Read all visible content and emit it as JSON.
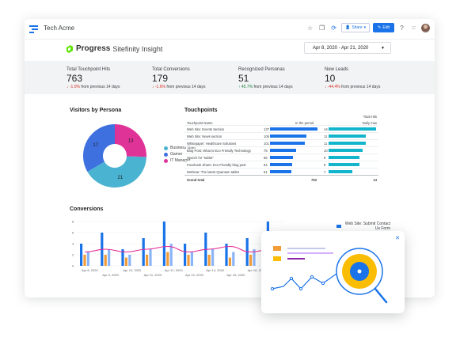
{
  "app": {
    "title": "Tech Acme"
  },
  "toolbar": {
    "share_label": "Share",
    "edit_label": "Edit",
    "icons": [
      "star-icon",
      "copy-icon",
      "refresh-icon",
      "help-icon",
      "apps-icon"
    ]
  },
  "brand": {
    "name": "Progress",
    "product": "Sitefinity Insight"
  },
  "date_range": {
    "value": "Apr 8, 2020 - Apr 21, 2020"
  },
  "kpis": [
    {
      "label": "Total Touchpoint Hits",
      "value": "763",
      "change": "↓ -1.0%",
      "suffix": "from previous 14 days",
      "direction": "down"
    },
    {
      "label": "Total Conversions",
      "value": "179",
      "change": "↓ -1.6%",
      "suffix": "from previous 14 days",
      "direction": "down"
    },
    {
      "label": "Recognized Personas",
      "value": "51",
      "change": "↑ 45.7%",
      "suffix": "from previous 14 days",
      "direction": "up"
    },
    {
      "label": "New Leads",
      "value": "10",
      "change": "↓ -44.4%",
      "suffix": "from previous 14 days",
      "direction": "down"
    }
  ],
  "personas": {
    "title": "Visitors by Persona",
    "legend": [
      "Business User",
      "Gamer",
      "IT Manager"
    ],
    "colors": [
      "#4ab3d1",
      "#3f70e0",
      "#e03397"
    ],
    "chart_data": {
      "type": "pie",
      "categories": [
        "Business User",
        "Gamer",
        "IT Manager"
      ],
      "values": [
        21,
        17,
        13
      ],
      "title": "Visitors by Persona"
    }
  },
  "touchpoints": {
    "title": "Touchpoints",
    "col_header_right": "Total Hits",
    "col_name": "Touchpoint Name",
    "col_period": "In the period",
    "col_daily": "Daily max",
    "rows": [
      {
        "name": "Web Site: Events Section",
        "period": "137",
        "daily": "14"
      },
      {
        "name": "Web Site: News section",
        "period": "106",
        "daily": "11"
      },
      {
        "name": "Whitepaper: Healthcare Solutions",
        "period": "101",
        "daily": "11"
      },
      {
        "name": "Blog Post: What is Eco Friendly Technology",
        "period": "75",
        "daily": "10"
      },
      {
        "name": "Search for \"tablet\"",
        "period": "66",
        "daily": "9"
      },
      {
        "name": "Facebook Share: Eco Friendly blog post",
        "period": "64",
        "daily": "9"
      },
      {
        "name": "Webinar: The latest Quantum tablet",
        "period": "61",
        "daily": "7"
      }
    ],
    "total_label": "Grand total",
    "total_period": "763",
    "total_daily": "14"
  },
  "conversions": {
    "title": "Conversions",
    "legend_label": "Web Site: Submit Contact Us Form",
    "y_ticks": [
      "8",
      "6",
      "4",
      "2",
      "0"
    ],
    "x_ticks_top": [
      "Apr 8, 2020",
      "Apr 10, 2020",
      "Apr 12, 2020",
      "Apr 14, 2020",
      "Apr 16, 2020"
    ],
    "x_ticks_bottom": [
      "Apr 9, 2020",
      "Apr 11, 2020",
      "Apr 13, 2020",
      "Apr 15, 2020",
      "Apr 17, 20"
    ],
    "colors": [
      "#1a73e8",
      "#f29c38",
      "#8ab4f8",
      "#e52592"
    ],
    "chart_data": {
      "type": "bar",
      "categories": [
        "Apr 8",
        "Apr 9",
        "Apr 10",
        "Apr 11",
        "Apr 12",
        "Apr 13",
        "Apr 14",
        "Apr 15",
        "Apr 16",
        "Apr 17"
      ],
      "series": [
        {
          "values": [
            4,
            6,
            3,
            5,
            8,
            4,
            6,
            4,
            5,
            8
          ]
        },
        {
          "values": [
            2,
            2,
            1.5,
            2,
            2.5,
            2,
            2,
            1.5,
            2,
            2
          ]
        },
        {
          "values": [
            2.5,
            3,
            2,
            3,
            4,
            2.5,
            3,
            2.5,
            3,
            3
          ]
        },
        {
          "values": [
            2.5,
            3,
            2.5,
            3,
            3.5,
            2.5,
            3,
            3.5,
            2.5,
            3
          ]
        }
      ],
      "ylim": [
        0,
        8
      ]
    }
  }
}
